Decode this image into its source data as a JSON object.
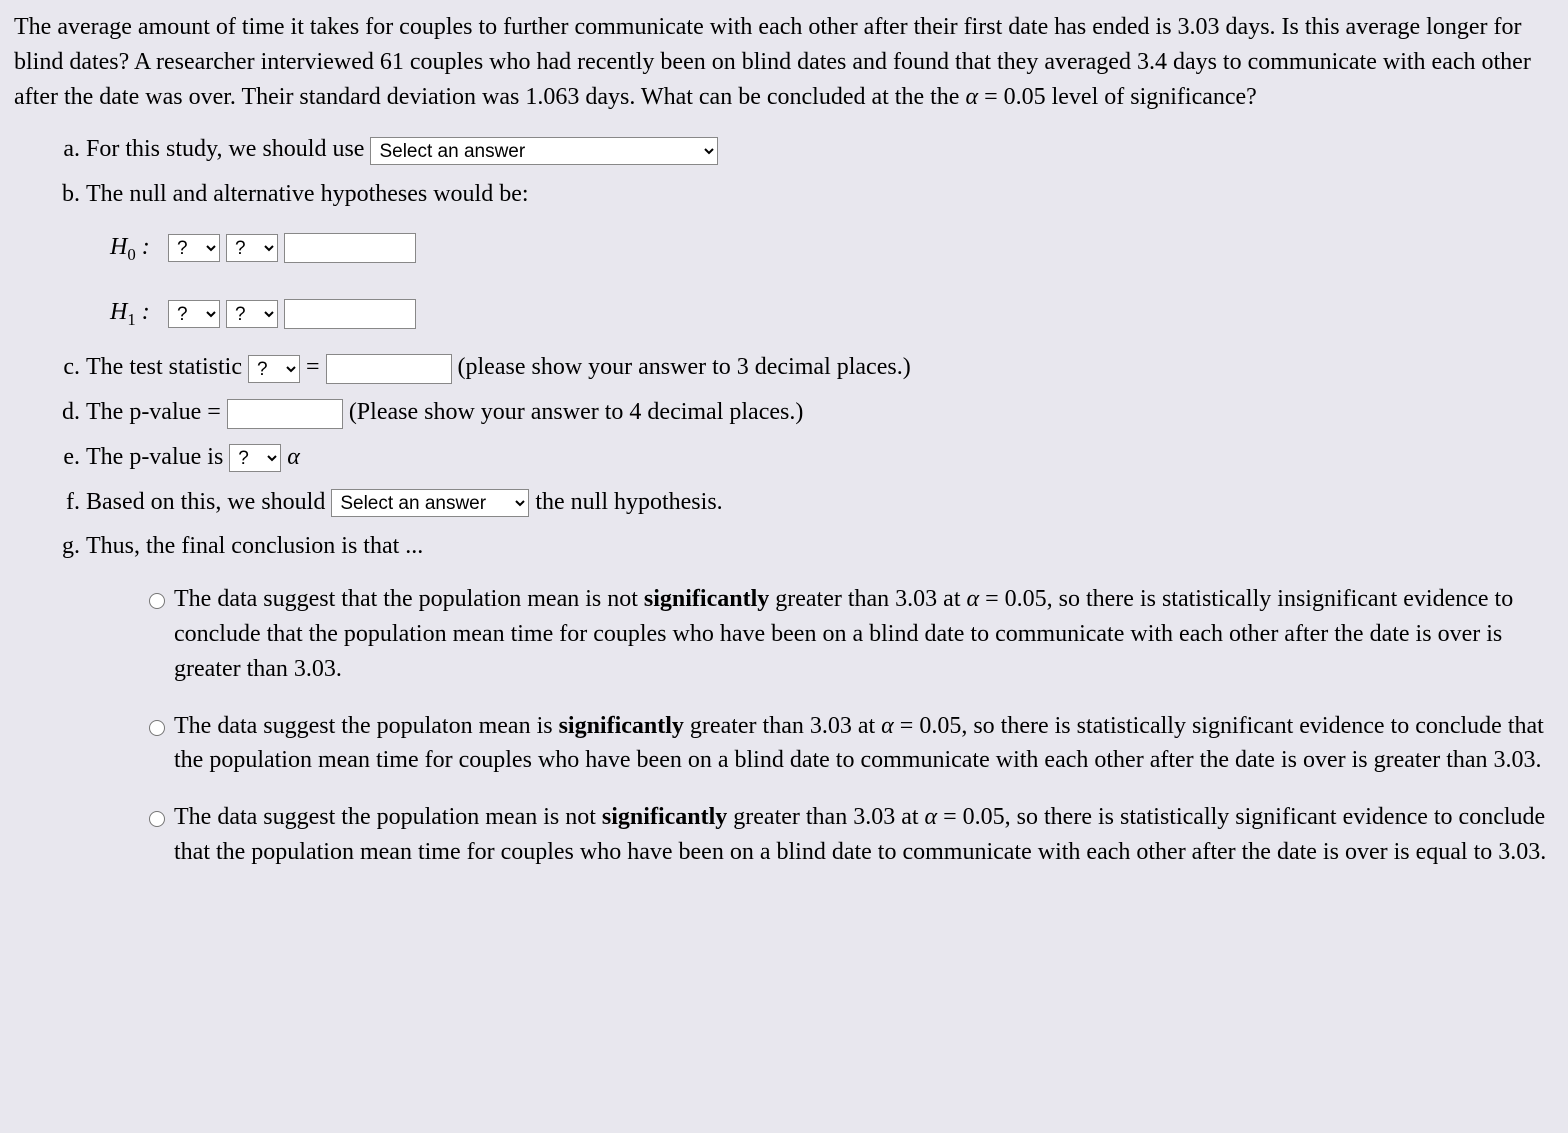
{
  "intro": {
    "p1a": "The average amount of time it takes for couples to further communicate with each other after their first date has ended is 3.03 days.  Is this average longer for blind dates? A researcher interviewed 61 couples who had recently been on blind dates and found that they averaged 3.4 days to communicate with each other after the date was over.  Their standard deviation was 1.063 days. What can be concluded at the the ",
    "alpha": "α",
    "p1b": " = 0.05 level of significance?"
  },
  "a": {
    "text": "For this study, we should use ",
    "placeholder": "Select an answer"
  },
  "b": {
    "text": "The null and alternative hypotheses would be:",
    "h0label": "H",
    "h0sub": "0",
    "colon": " :",
    "h1label": "H",
    "h1sub": "1",
    "qmark": "?"
  },
  "c": {
    "t1": "The test statistic ",
    "q": "?",
    "eq": " = ",
    "t2": " (please show your answer to 3 decimal places.)"
  },
  "d": {
    "t1": "The p-value = ",
    "t2": " (Please show your answer to 4 decimal places.)"
  },
  "e": {
    "t1": "The p-value is ",
    "q": "?",
    "alpha": "α"
  },
  "f": {
    "t1": "Based on this, we should ",
    "placeholder": "Select an answer",
    "t2": " the null hypothesis."
  },
  "g": {
    "t1": "Thus, the final conclusion is that ...",
    "opt1a": "The data suggest that the population mean is not ",
    "opt1bold": "significantly",
    "opt1b": " greater than 3.03 at ",
    "opt1c": " = 0.05, so there is statistically insignificant evidence to conclude that the population mean time for couples who have been on a blind date to communicate with each other after the date is over is greater than 3.03.",
    "opt2a": "The data suggest the populaton mean is ",
    "opt2bold": "significantly",
    "opt2b": " greater than 3.03 at ",
    "opt2c": " = 0.05, so there is statistically significant evidence to conclude that the population mean time for couples who have been on a blind date to communicate with each other after the date is over is greater than 3.03.",
    "opt3a": "The data suggest the population mean is not ",
    "opt3bold": "significantly",
    "opt3b": " greater than 3.03 at ",
    "opt3c": " = 0.05, so there is statistically significant evidence to conclude that the population mean time for couples who have been on a blind date to communicate with each other after the date is over is equal to 3.03."
  },
  "alpha_sym": "α"
}
